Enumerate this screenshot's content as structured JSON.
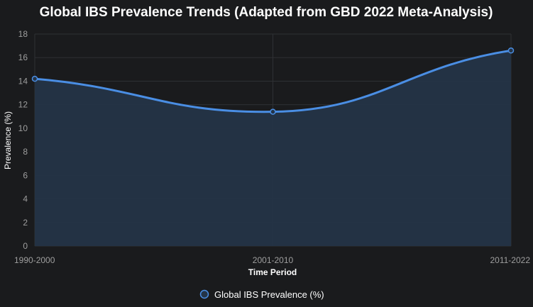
{
  "chart_data": {
    "type": "area",
    "title": "Global IBS Prevalence Trends (Adapted from GBD 2022 Meta-Analysis)",
    "xlabel": "Time Period",
    "ylabel": "Prevalence (%)",
    "categories": [
      "1990-2000",
      "2001-2010",
      "2011-2022"
    ],
    "series": [
      {
        "name": "Global IBS Prevalence (%)",
        "values": [
          14.2,
          11.4,
          16.6
        ]
      }
    ],
    "ylim": [
      0,
      18
    ],
    "yticks": [
      "0",
      "2",
      "4",
      "6",
      "8",
      "10",
      "12",
      "14",
      "16",
      "18"
    ],
    "grid": true,
    "legend_position": "bottom",
    "colors": {
      "line": "#4a8ee4",
      "fill": "#243447",
      "background": "#1a1b1d",
      "grid": "#2e3034",
      "tick_text": "#9e9e9e"
    }
  }
}
